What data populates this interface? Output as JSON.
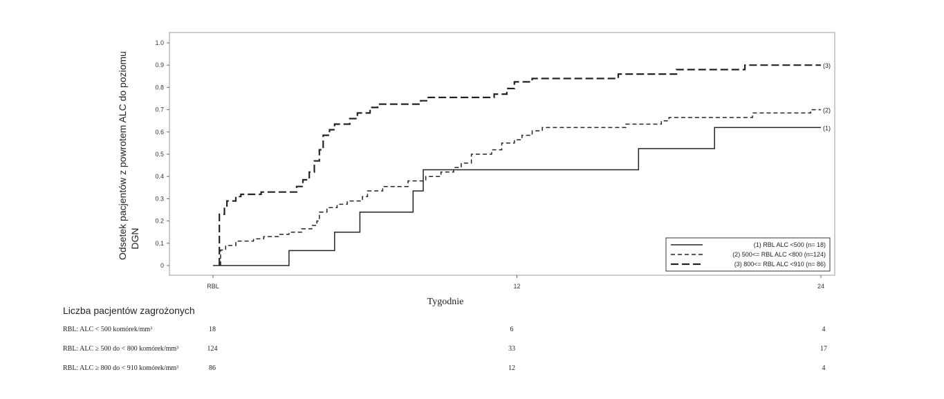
{
  "chart_data": {
    "type": "line",
    "subtype": "kaplan-meier step",
    "ylabel_line1": "Odsetek pacjentów z powrotem ALC do  poziomu",
    "ylabel_line2": "DGN",
    "xlabel": "Tygodnie",
    "xlim": [
      0,
      24
    ],
    "ylim": [
      0,
      1.0
    ],
    "x_ticks": [
      0,
      12,
      24
    ],
    "x_tick_labels": [
      "RBL",
      "12",
      "24"
    ],
    "y_ticks": [
      0,
      0.1,
      0.2,
      0.3,
      0.4,
      0.5,
      0.6,
      0.7,
      0.8,
      0.9,
      1.0
    ],
    "y_tick_labels": [
      "0",
      "0.1",
      "0.2",
      "0.3",
      "0.4",
      "0.5",
      "0.6",
      "0.7",
      "0.8",
      "0.9",
      "1.0"
    ],
    "grid": false,
    "legend_position": "bottom-right",
    "series": [
      {
        "name": "(1) RBL ALC <500 (n= 18)",
        "end_label": "(1)",
        "style": "solid",
        "color": "#222222",
        "points": [
          [
            0,
            0
          ],
          [
            3,
            0
          ],
          [
            3,
            0.067
          ],
          [
            4.8,
            0.067
          ],
          [
            4.8,
            0.15
          ],
          [
            5.8,
            0.15
          ],
          [
            5.8,
            0.24
          ],
          [
            7.9,
            0.24
          ],
          [
            7.9,
            0.335
          ],
          [
            8.3,
            0.335
          ],
          [
            8.3,
            0.43
          ],
          [
            16.8,
            0.43
          ],
          [
            16.8,
            0.525
          ],
          [
            19.8,
            0.525
          ],
          [
            19.8,
            0.62
          ],
          [
            24,
            0.62
          ]
        ]
      },
      {
        "name": "(2) 500<= RBL ALC <800 (n=124)",
        "end_label": "(2)",
        "style": "short-dash",
        "color": "#222222",
        "points": [
          [
            0.3,
            0
          ],
          [
            0.3,
            0.07
          ],
          [
            0.5,
            0.07
          ],
          [
            0.5,
            0.09
          ],
          [
            0.9,
            0.09
          ],
          [
            0.9,
            0.11
          ],
          [
            1.6,
            0.11
          ],
          [
            1.6,
            0.12
          ],
          [
            2,
            0.12
          ],
          [
            2,
            0.13
          ],
          [
            2.6,
            0.13
          ],
          [
            2.6,
            0.14
          ],
          [
            3,
            0.14
          ],
          [
            3,
            0.15
          ],
          [
            3.5,
            0.15
          ],
          [
            3.5,
            0.165
          ],
          [
            3.9,
            0.165
          ],
          [
            3.9,
            0.18
          ],
          [
            4.1,
            0.18
          ],
          [
            4.1,
            0.2
          ],
          [
            4.2,
            0.2
          ],
          [
            4.2,
            0.24
          ],
          [
            4.5,
            0.24
          ],
          [
            4.5,
            0.26
          ],
          [
            4.9,
            0.26
          ],
          [
            4.9,
            0.275
          ],
          [
            5.3,
            0.275
          ],
          [
            5.3,
            0.29
          ],
          [
            5.9,
            0.29
          ],
          [
            5.9,
            0.31
          ],
          [
            6.1,
            0.31
          ],
          [
            6.1,
            0.335
          ],
          [
            6.7,
            0.335
          ],
          [
            6.7,
            0.355
          ],
          [
            7.7,
            0.355
          ],
          [
            7.7,
            0.38
          ],
          [
            8.4,
            0.38
          ],
          [
            8.4,
            0.4
          ],
          [
            9,
            0.4
          ],
          [
            9,
            0.42
          ],
          [
            9.5,
            0.42
          ],
          [
            9.5,
            0.44
          ],
          [
            9.8,
            0.44
          ],
          [
            9.8,
            0.46
          ],
          [
            10.2,
            0.46
          ],
          [
            10.2,
            0.5
          ],
          [
            11,
            0.5
          ],
          [
            11,
            0.52
          ],
          [
            11.4,
            0.52
          ],
          [
            11.4,
            0.55
          ],
          [
            11.9,
            0.55
          ],
          [
            11.9,
            0.565
          ],
          [
            12.2,
            0.565
          ],
          [
            12.2,
            0.585
          ],
          [
            12.6,
            0.585
          ],
          [
            12.6,
            0.605
          ],
          [
            13,
            0.605
          ],
          [
            13,
            0.62
          ],
          [
            16.3,
            0.62
          ],
          [
            16.3,
            0.635
          ],
          [
            17.7,
            0.635
          ],
          [
            17.7,
            0.65
          ],
          [
            18,
            0.65
          ],
          [
            18,
            0.665
          ],
          [
            21.3,
            0.665
          ],
          [
            21.3,
            0.685
          ],
          [
            23.6,
            0.685
          ],
          [
            23.6,
            0.7
          ],
          [
            24,
            0.7
          ]
        ]
      },
      {
        "name": "(3) 800<= RBL ALC <910 (n= 86)",
        "end_label": "(3)",
        "style": "long-dash",
        "color": "#222222",
        "points": [
          [
            0.25,
            0
          ],
          [
            0.25,
            0.23
          ],
          [
            0.45,
            0.23
          ],
          [
            0.45,
            0.26
          ],
          [
            0.55,
            0.26
          ],
          [
            0.55,
            0.29
          ],
          [
            0.9,
            0.29
          ],
          [
            0.9,
            0.31
          ],
          [
            1.1,
            0.31
          ],
          [
            1.1,
            0.32
          ],
          [
            1.9,
            0.32
          ],
          [
            1.9,
            0.33
          ],
          [
            3.3,
            0.33
          ],
          [
            3.3,
            0.355
          ],
          [
            3.55,
            0.355
          ],
          [
            3.55,
            0.385
          ],
          [
            3.8,
            0.385
          ],
          [
            3.8,
            0.42
          ],
          [
            4.0,
            0.42
          ],
          [
            4.0,
            0.47
          ],
          [
            4.2,
            0.47
          ],
          [
            4.2,
            0.52
          ],
          [
            4.35,
            0.52
          ],
          [
            4.35,
            0.585
          ],
          [
            4.6,
            0.585
          ],
          [
            4.6,
            0.61
          ],
          [
            4.8,
            0.61
          ],
          [
            4.8,
            0.635
          ],
          [
            5.4,
            0.635
          ],
          [
            5.4,
            0.66
          ],
          [
            5.7,
            0.66
          ],
          [
            5.7,
            0.685
          ],
          [
            6.2,
            0.685
          ],
          [
            6.2,
            0.71
          ],
          [
            6.5,
            0.71
          ],
          [
            6.5,
            0.725
          ],
          [
            8.2,
            0.725
          ],
          [
            8.2,
            0.74
          ],
          [
            8.5,
            0.74
          ],
          [
            8.5,
            0.755
          ],
          [
            11.1,
            0.755
          ],
          [
            11.1,
            0.77
          ],
          [
            11.6,
            0.77
          ],
          [
            11.6,
            0.795
          ],
          [
            11.9,
            0.795
          ],
          [
            11.9,
            0.825
          ],
          [
            12.6,
            0.825
          ],
          [
            12.6,
            0.84
          ],
          [
            16,
            0.84
          ],
          [
            16,
            0.86
          ],
          [
            18.3,
            0.86
          ],
          [
            18.3,
            0.88
          ],
          [
            21,
            0.88
          ],
          [
            21,
            0.9
          ],
          [
            24,
            0.9
          ]
        ]
      }
    ],
    "risk_table": {
      "title": "Liczba pacjentów zagrożonych",
      "rows": [
        {
          "label": "RBL: ALC < 500 komórek/mm³",
          "values": [
            "18",
            "6",
            "4"
          ]
        },
        {
          "label": "RBL: ALC ≥ 500 do < 800 komórek/mm³",
          "values": [
            "124",
            "33",
            "17"
          ]
        },
        {
          "label": "RBL: ALC ≥ 800 do < 910 komórek/mm³",
          "values": [
            "86",
            "12",
            "4"
          ]
        }
      ]
    }
  }
}
